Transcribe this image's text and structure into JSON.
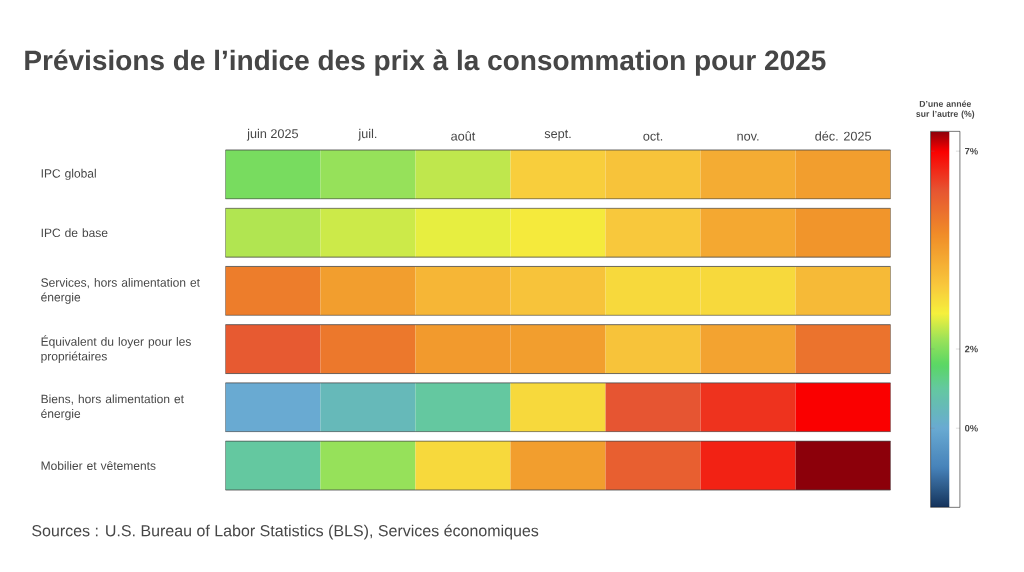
{
  "chart_data": {
    "type": "heatmap",
    "title": "Prévisions de l’indice des prix à la consommation pour 2025",
    "categories": [
      "juin 2025",
      "juil.",
      "août",
      "sept.",
      "oct.",
      "nov.",
      "déc. 2025"
    ],
    "y_categories": [
      "IPC global",
      "IPC de base",
      "Services, hors alimentation et énergie",
      "Équivalent du loyer pour les propriétaires",
      "Biens, hors alimentation et énergie",
      "Mobilier et vêtements"
    ],
    "cells": [
      [
        1.9,
        2.2,
        2.5,
        3.5,
        3.7,
        4.2,
        4.5
      ],
      [
        2.4,
        2.6,
        2.8,
        3.0,
        3.6,
        4.3,
        4.7
      ],
      [
        5.2,
        4.5,
        4.0,
        3.7,
        3.3,
        3.3,
        3.9
      ],
      [
        5.9,
        5.3,
        4.6,
        4.5,
        3.7,
        4.4,
        5.4
      ],
      [
        0.0,
        0.5,
        1.0,
        3.3,
        6.0,
        6.4,
        7.0
      ],
      [
        1.0,
        2.2,
        3.3,
        4.5,
        5.8,
        6.6,
        7.5
      ]
    ],
    "clabel": "D’une année sur l’autre (%)",
    "clim": [
      -2,
      7.5
    ],
    "cticks": [
      {
        "value": 0,
        "label": "0%"
      },
      {
        "value": 2,
        "label": "2%"
      },
      {
        "value": 7,
        "label": "7%"
      }
    ],
    "annotations": [
      "Sources : U.S. Bureau of Labor Statistics (BLS), Services économiques"
    ]
  }
}
